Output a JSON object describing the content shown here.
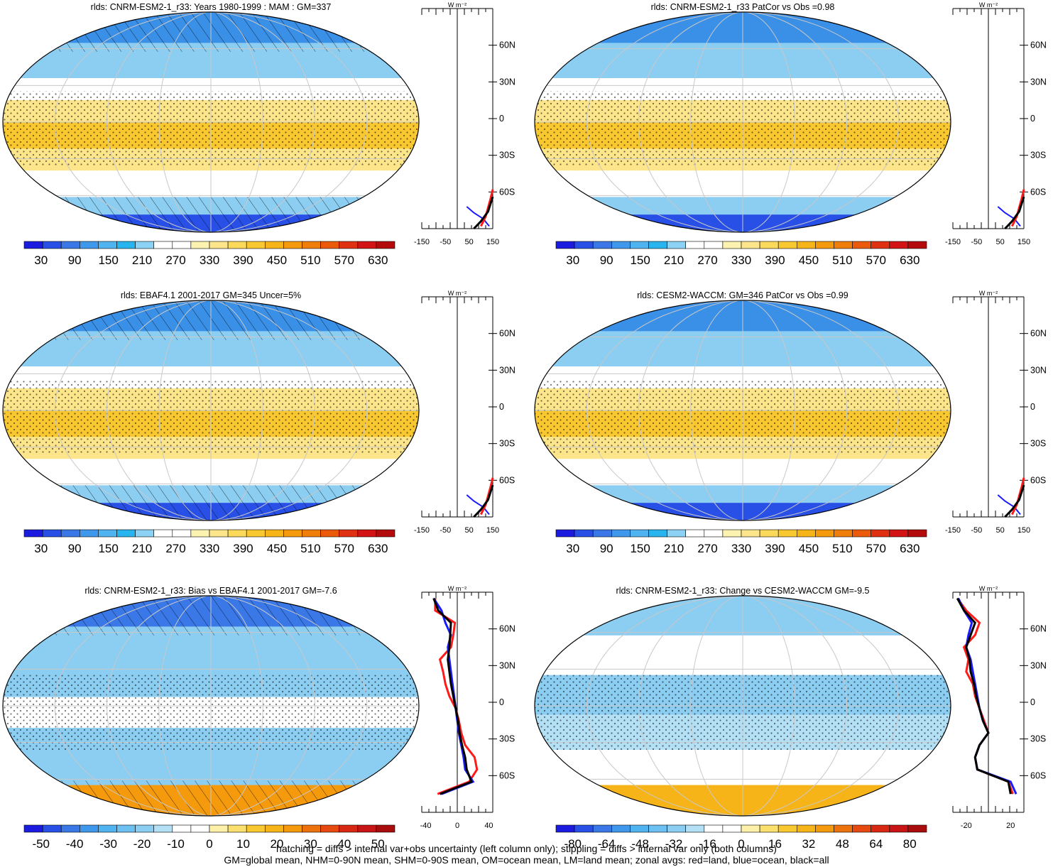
{
  "chart_data": {
    "type": "panel-grid",
    "units_label": "W m⁻²",
    "lat_ticks": [
      "60N",
      "30N",
      "0",
      "30S",
      "60S"
    ],
    "lat_tick_values": [
      60,
      30,
      0,
      -30,
      -60
    ],
    "colors": {
      "deep_blue": "#1e2cd8",
      "mid_blue": "#3a8fe6",
      "light_blue": "#8ccdf2",
      "white": "#ffffff",
      "pale_yellow": "#fbeea0",
      "yellow": "#fbd24a",
      "orange": "#f08c1c",
      "red": "#d21414",
      "land_line": "#ff1a1a",
      "ocean_line": "#1a1aff",
      "all_line": "#000000"
    },
    "panels": [
      {
        "title": "rlds: CNRM-ESM2-1_r33: Years 1980-1999 : MAM : GM=337",
        "colorbar_labels": [
          "30",
          "90",
          "150",
          "210",
          "270",
          "330",
          "390",
          "450",
          "510",
          "570",
          "630"
        ],
        "zonal_ticks": [
          "-150",
          "-50",
          "50",
          "150"
        ],
        "zonal_tick_values": [
          -150,
          -50,
          50,
          150
        ],
        "zonal_xlim": [
          -150,
          150
        ],
        "hatching": true
      },
      {
        "title": "rlds: CNRM-ESM2-1_r33 PatCor vs Obs =0.98",
        "colorbar_labels": [
          "30",
          "90",
          "150",
          "210",
          "270",
          "330",
          "390",
          "450",
          "510",
          "570",
          "630"
        ],
        "zonal_ticks": [
          "-150",
          "-50",
          "50",
          "150"
        ],
        "zonal_tick_values": [
          -150,
          -50,
          50,
          150
        ],
        "zonal_xlim": [
          -150,
          150
        ],
        "hatching": false
      },
      {
        "title": "rlds: EBAF4.1 2001-2017 GM=345 Uncer=5%",
        "colorbar_labels": [
          "30",
          "90",
          "150",
          "210",
          "270",
          "330",
          "390",
          "450",
          "510",
          "570",
          "630"
        ],
        "zonal_ticks": [
          "-150",
          "-50",
          "50",
          "150"
        ],
        "zonal_tick_values": [
          -150,
          -50,
          50,
          150
        ],
        "zonal_xlim": [
          -150,
          150
        ],
        "hatching": true
      },
      {
        "title": "rlds: CESM2-WACCM: GM=346 PatCor vs Obs =0.99",
        "colorbar_labels": [
          "30",
          "90",
          "150",
          "210",
          "270",
          "330",
          "390",
          "450",
          "510",
          "570",
          "630"
        ],
        "zonal_ticks": [
          "-150",
          "-50",
          "50",
          "150"
        ],
        "zonal_tick_values": [
          -150,
          -50,
          50,
          150
        ],
        "zonal_xlim": [
          -150,
          150
        ],
        "hatching": false
      },
      {
        "title": "rlds: CNRM-ESM2-1_r33: Bias vs EBAF4.1 2001-2017 GM=-7.6",
        "colorbar_labels": [
          "-50",
          "-40",
          "-30",
          "-20",
          "-10",
          "0",
          "10",
          "20",
          "30",
          "40",
          "50"
        ],
        "zonal_ticks": [
          "-40",
          "0",
          "40"
        ],
        "zonal_tick_values": [
          -40,
          0,
          40
        ],
        "zonal_xlim": [
          -45,
          45
        ],
        "hatching": true,
        "zonal_profiles": {
          "lat": [
            85,
            75,
            65,
            55,
            45,
            35,
            25,
            15,
            5,
            -5,
            -15,
            -25,
            -35,
            -45,
            -55,
            -65,
            -75
          ],
          "land": [
            -28,
            -28,
            -3,
            -5,
            -8,
            -22,
            -18,
            -15,
            -10,
            -2,
            2,
            5,
            10,
            22,
            25,
            15,
            -25
          ],
          "ocean": [
            -30,
            -20,
            -15,
            -8,
            -12,
            -10,
            -8,
            -6,
            -4,
            -2,
            0,
            2,
            5,
            8,
            10,
            20,
            -20
          ],
          "all": [
            -30,
            -24,
            -8,
            -9,
            -10,
            -12,
            -10,
            -8,
            -5,
            -2,
            1,
            3,
            6,
            10,
            12,
            18,
            -22
          ]
        }
      },
      {
        "title": "rlds: CNRM-ESM2-1_r33: Change vs CESM2-WACCM GM=-9.5",
        "colorbar_labels": [
          "-80",
          "-64",
          "-48",
          "-32",
          "-16",
          "0",
          "16",
          "32",
          "48",
          "64",
          "80"
        ],
        "zonal_ticks": [
          "-20",
          "20"
        ],
        "zonal_tick_values": [
          -20,
          20
        ],
        "zonal_xlim": [
          -32,
          32
        ],
        "hatching": false,
        "zonal_profiles": {
          "lat": [
            85,
            75,
            65,
            55,
            45,
            35,
            25,
            15,
            5,
            -5,
            -15,
            -25,
            -35,
            -45,
            -55,
            -65,
            -75
          ],
          "land": [
            -28,
            -20,
            -8,
            -12,
            -22,
            -18,
            -20,
            -14,
            -12,
            -8,
            -4,
            0,
            -8,
            -12,
            -10,
            18,
            22
          ],
          "ocean": [
            -27,
            -22,
            -15,
            -18,
            -20,
            -16,
            -14,
            -12,
            -10,
            -8,
            -5,
            0,
            -8,
            -12,
            -10,
            20,
            25
          ],
          "all": [
            -28,
            -22,
            -12,
            -16,
            -20,
            -17,
            -16,
            -13,
            -11,
            -8,
            -5,
            0,
            -8,
            -12,
            -10,
            18,
            20
          ]
        }
      }
    ]
  },
  "footer": {
    "line1": "hatching = diffs > internal var+obs uncertainty (left column only); stippling = diffs > internal var only (both columns)",
    "line2": "GM=global mean, NHM=0-90N mean, SHM=0-90S mean, OM=ocean mean, LM=land mean; zonal avgs: red=land, blue=ocean, black=all"
  }
}
